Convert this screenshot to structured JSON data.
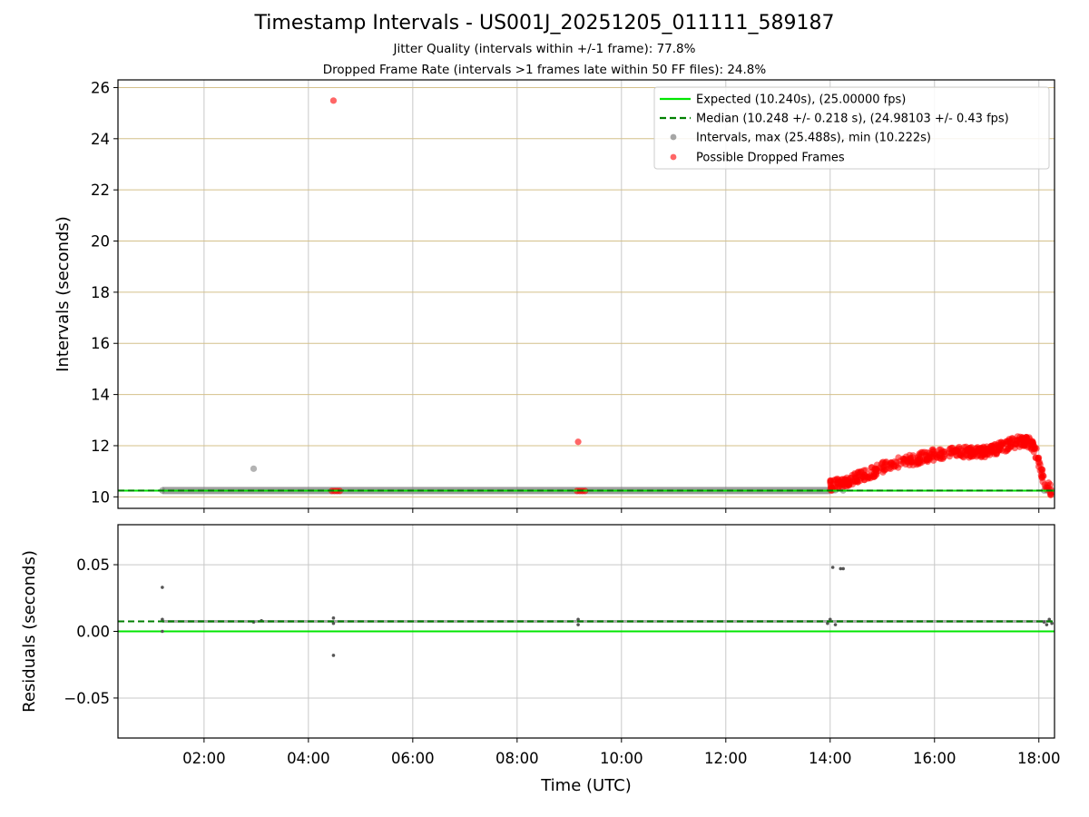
{
  "title": "Timestamp Intervals - US001J_20251205_011111_589187",
  "subtitle_1": "Jitter Quality (intervals within +/-1 frame): 77.8%",
  "subtitle_2": "Dropped Frame Rate (intervals >1 frames late within 50 FF files): 24.8%",
  "colors": {
    "expected": "#00e600",
    "median": "#008000",
    "intervals": "#808080",
    "dropped": "#ff0000",
    "hgrid_top": "#d4c08a",
    "grid": "#c8c8c8"
  },
  "chart_data": [
    {
      "type": "scatter",
      "xlabel": "",
      "ylabel": "Intervals (seconds)",
      "xlim": [
        0.35,
        18.3
      ],
      "ylim": [
        9.55,
        26.3
      ],
      "yticks": [
        10,
        12,
        14,
        16,
        18,
        20,
        22,
        24,
        26
      ],
      "ytick_labels": [
        "10",
        "12",
        "14",
        "16",
        "18",
        "20",
        "22",
        "24",
        "26"
      ],
      "grid": "both",
      "legend_position": "top-right",
      "legend": [
        "Expected (10.240s), (25.00000 fps)",
        "Median (10.248 +/- 0.218 s), (24.98103 +/- 0.43 fps)",
        "Intervals, max (25.488s), min (10.222s)",
        "Possible Dropped Frames"
      ],
      "lines": {
        "expected": 10.24,
        "median": 10.248
      },
      "series": [
        {
          "name": "Intervals, max (25.488s), min (10.222s)",
          "segment": {
            "x_start": 1.2,
            "x_end": 14.0,
            "y": 10.248
          },
          "points": [
            {
              "x": 1.2,
              "y": 10.25
            },
            {
              "x": 2.95,
              "y": 11.1
            },
            {
              "x": 14.05,
              "y": 10.25
            },
            {
              "x": 14.1,
              "y": 10.26
            },
            {
              "x": 14.25,
              "y": 10.25
            },
            {
              "x": 18.1,
              "y": 10.25
            },
            {
              "x": 18.15,
              "y": 10.25
            }
          ]
        },
        {
          "name": "Possible Dropped Frames",
          "points": [
            {
              "x": 4.48,
              "y": 25.49
            },
            {
              "x": 4.45,
              "y": 10.23
            },
            {
              "x": 4.5,
              "y": 10.23
            },
            {
              "x": 4.55,
              "y": 10.23
            },
            {
              "x": 4.6,
              "y": 10.23
            },
            {
              "x": 9.17,
              "y": 12.15
            },
            {
              "x": 9.15,
              "y": 10.23
            },
            {
              "x": 9.2,
              "y": 10.23
            },
            {
              "x": 9.25,
              "y": 10.23
            },
            {
              "x": 9.3,
              "y": 10.23
            }
          ],
          "band": {
            "x": [
              14.0,
              14.2,
              14.5,
              14.8,
              15.0,
              15.3,
              15.6,
              16.0,
              16.3,
              16.6,
              17.0,
              17.3,
              17.5,
              17.7,
              17.85,
              17.95,
              18.05,
              18.1,
              18.2,
              18.25
            ],
            "y": [
              10.45,
              10.55,
              10.75,
              10.95,
              11.15,
              11.35,
              11.45,
              11.65,
              11.75,
              11.75,
              11.75,
              11.95,
              12.1,
              12.2,
              12.1,
              11.7,
              11.0,
              10.6,
              10.3,
              10.25
            ],
            "spread": 0.22
          }
        }
      ]
    },
    {
      "type": "scatter",
      "xlabel": "Time (UTC)",
      "ylabel": "Residuals (seconds)",
      "xlim": [
        0.35,
        18.3
      ],
      "ylim": [
        -0.08,
        0.08
      ],
      "xticks": [
        2,
        4,
        6,
        8,
        10,
        12,
        14,
        16,
        18
      ],
      "xtick_labels": [
        "02:00",
        "04:00",
        "06:00",
        "08:00",
        "10:00",
        "12:00",
        "14:00",
        "16:00",
        "18:00"
      ],
      "yticks": [
        -0.05,
        0.0,
        0.05
      ],
      "ytick_labels": [
        "−0.05",
        "0.00",
        "0.05"
      ],
      "grid": "both",
      "lines": {
        "expected": 0.0,
        "median": 0.0075
      },
      "series": [
        {
          "name": "",
          "segment": {
            "x_start": 1.2,
            "x_end": 18.25,
            "y": 0.0075
          },
          "points": [
            {
              "x": 1.2,
              "y": 0.033
            },
            {
              "x": 1.2,
              "y": 0.0
            },
            {
              "x": 1.2,
              "y": 0.009
            },
            {
              "x": 2.95,
              "y": 0.007
            },
            {
              "x": 3.1,
              "y": 0.008
            },
            {
              "x": 4.48,
              "y": -0.018
            },
            {
              "x": 4.48,
              "y": 0.01
            },
            {
              "x": 4.48,
              "y": 0.006
            },
            {
              "x": 9.17,
              "y": 0.005
            },
            {
              "x": 9.17,
              "y": 0.009
            },
            {
              "x": 13.95,
              "y": 0.006
            },
            {
              "x": 14.0,
              "y": 0.009
            },
            {
              "x": 14.05,
              "y": 0.048
            },
            {
              "x": 14.1,
              "y": 0.005
            },
            {
              "x": 14.2,
              "y": 0.047
            },
            {
              "x": 14.25,
              "y": 0.047
            },
            {
              "x": 18.1,
              "y": 0.007
            },
            {
              "x": 18.15,
              "y": 0.005
            },
            {
              "x": 18.2,
              "y": 0.009
            },
            {
              "x": 18.25,
              "y": 0.006
            }
          ]
        }
      ]
    }
  ]
}
